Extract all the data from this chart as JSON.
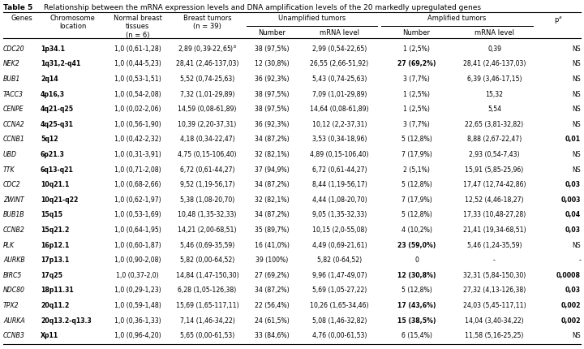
{
  "bg_color": "#ffffff",
  "rows": [
    [
      "CDC20",
      "1p34.1",
      "1,0 (0,61-1,28)",
      "2,89 (0,39-22,65)",
      true,
      "38 (97,5%)",
      "2,99 (0,54-22,65)",
      "1 (2,5%)",
      "0,39",
      "NS",
      false,
      false,
      false
    ],
    [
      "NEK2",
      "1q31,2-q41",
      "1,0 (0,44-5,23)",
      "28,41 (2,46-137,03)",
      false,
      "12 (30,8%)",
      "26,55 (2,66-51,92)",
      "27 (69,2%)",
      "28,41 (2,46-137,03)",
      "NS",
      false,
      true,
      false
    ],
    [
      "BUB1",
      "2q14",
      "1,0 (0,53-1,51)",
      "5,52 (0,74-25,63)",
      false,
      "36 (92,3%)",
      "5,43 (0,74-25,63)",
      "3 (7,7%)",
      "6,39 (3,46-17,15)",
      "NS",
      false,
      false,
      false
    ],
    [
      "TACC3",
      "4p16,3",
      "1,0 (0,54-2,08)",
      "7,32 (1,01-29,89)",
      false,
      "38 (97,5%)",
      "7,09 (1,01-29,89)",
      "1 (2,5%)",
      "15,32",
      "NS",
      false,
      false,
      false
    ],
    [
      "CENPE",
      "4q21-q25",
      "1,0 (0,02-2,06)",
      "14,59 (0,08-61,89)",
      false,
      "38 (97,5%)",
      "14,64 (0,08-61,89)",
      "1 (2,5%)",
      "5,54",
      "NS",
      false,
      false,
      false
    ],
    [
      "CCNA2",
      "4q25-q31",
      "1,0 (0,56-1,90)",
      "10,39 (2,20-37,31)",
      false,
      "36 (92,3%)",
      "10,12 (2,2-37,31)",
      "3 (7,7%)",
      "22,65 (3,81-32,82)",
      "NS",
      false,
      false,
      false
    ],
    [
      "CCNB1",
      "5q12",
      "1,0 (0,42-2,32)",
      "4,18 (0,34-22,47)",
      false,
      "34 (87,2%)",
      "3,53 (0,34-18,96)",
      "5 (12,8%)",
      "8,88 (2,67-22,47)",
      "0,01",
      false,
      false,
      true
    ],
    [
      "UBD",
      "6p21.3",
      "1,0 (0,31-3,91)",
      "4,75 (0,15-106,40)",
      false,
      "32 (82,1%)",
      "4,89 (0,15-106,40)",
      "7 (17,9%)",
      "2,93 (0,54-7,43)",
      "NS",
      false,
      false,
      false
    ],
    [
      "TTK",
      "6q13-q21",
      "1,0 (0,71-2,08)",
      "6,72 (0,61-44,27)",
      false,
      "37 (94,9%)",
      "6,72 (0,61-44,27)",
      "2 (5,1%)",
      "15,91 (5,85-25,96)",
      "NS",
      false,
      false,
      false
    ],
    [
      "CDC2",
      "10q21.1",
      "1,0 (0,68-2,66)",
      "9,52 (1,19-56,17)",
      false,
      "34 (87,2%)",
      "8,44 (1,19-56,17)",
      "5 (12,8%)",
      "17,47 (12,74-42,86)",
      "0,03",
      false,
      false,
      true
    ],
    [
      "ZWINT",
      "10q21-q22",
      "1,0 (0,62-1,97)",
      "5,38 (1,08-20,70)",
      false,
      "32 (82,1%)",
      "4,44 (1,08-20,70)",
      "7 (17,9%)",
      "12,52 (4,46-18,27)",
      "0,003",
      false,
      false,
      true
    ],
    [
      "BUB1B",
      "15q15",
      "1,0 (0,53-1,69)",
      "10,48 (1,35-32,33)",
      false,
      "34 (87,2%)",
      "9,05 (1,35-32,33)",
      "5 (12,8%)",
      "17,33 (10,48-27,28)",
      "0,04",
      false,
      false,
      true
    ],
    [
      "CCNB2",
      "15q21.2",
      "1,0 (0,64-1,95)",
      "14,21 (2,00-68,51)",
      false,
      "35 (89,7%)",
      "10,15 (2,0-55,08)",
      "4 (10,2%)",
      "21,41 (19,34-68,51)",
      "0,03",
      false,
      false,
      true
    ],
    [
      "PLK",
      "16p12.1",
      "1,0 (0,60-1,87)",
      "5,46 (0,69-35,59)",
      false,
      "16 (41,0%)",
      "4,49 (0,69-21,61)",
      "23 (59,0%)",
      "5,46 (1,24-35,59)",
      "NS",
      false,
      true,
      false
    ],
    [
      "AURKB",
      "17p13.1",
      "1,0 (0,90-2,08)",
      "5,82 (0,00-64,52)",
      false,
      "39 (100%)",
      "5,82 (0-64,52)",
      "0",
      "-",
      "-",
      false,
      false,
      false
    ],
    [
      "BIRC5",
      "17q25",
      "1,0 (0,37-2,0)",
      "14,84 (1,47-150,30)",
      false,
      "27 (69,2%)",
      "9,96 (1,47-49,07)",
      "12 (30,8%)",
      "32,31 (5,84-150,30)",
      "0,0008",
      false,
      true,
      true
    ],
    [
      "NDC80",
      "18p11.31",
      "1,0 (0,29-1,23)",
      "6,28 (1,05-126,38)",
      false,
      "34 (87,2%)",
      "5,69 (1,05-27,22)",
      "5 (12,8%)",
      "27,32 (4,13-126,38)",
      "0,03",
      false,
      false,
      true
    ],
    [
      "TPX2",
      "20q11.2",
      "1,0 (0,59-1,48)",
      "15,69 (1,65-117,11)",
      false,
      "22 (56,4%)",
      "10,26 (1,65-34,46)",
      "17 (43,6%)",
      "24,03 (5,45-117,11)",
      "0,002",
      false,
      true,
      true
    ],
    [
      "AURKA",
      "20q13.2-q13.3",
      "1,0 (0,36-1,33)",
      "7,14 (1,46-34,22)",
      false,
      "24 (61,5%)",
      "5,08 (1,46-32,82)",
      "15 (38,5%)",
      "14,04 (3,40-34,22)",
      "0,002",
      false,
      true,
      true
    ],
    [
      "CCNB3",
      "Xp11",
      "1,0 (0,96-4,20)",
      "5,65 (0,00-61,53)",
      false,
      "33 (84,6%)",
      "4,76 (0,00-61,53)",
      "6 (15,4%)",
      "11,58 (5,16-25,25)",
      "NS",
      false,
      false,
      false
    ]
  ]
}
